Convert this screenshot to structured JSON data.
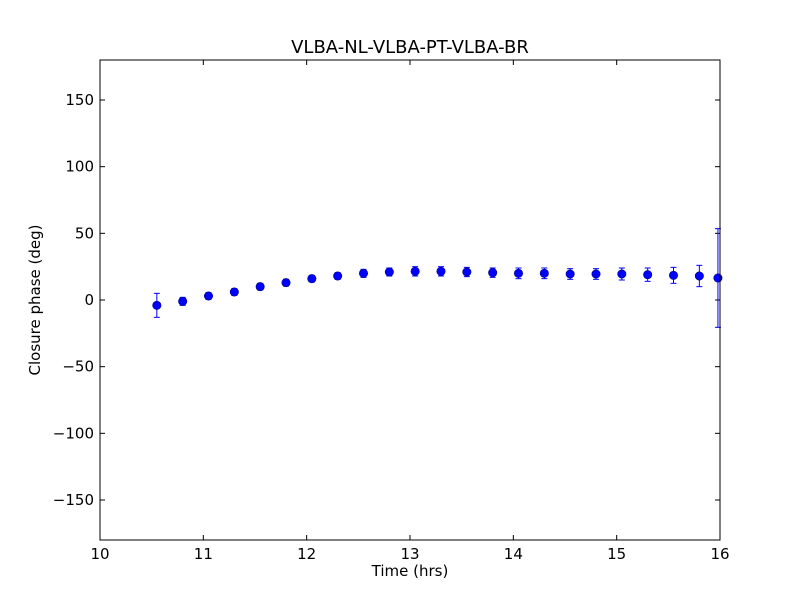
{
  "chart_data": {
    "type": "scatter",
    "title": "VLBA-NL-VLBA-PT-VLBA-BR",
    "xlabel": "Time (hrs)",
    "ylabel": "Closure phase (deg)",
    "xlim": [
      10,
      16
    ],
    "ylim": [
      -180,
      180
    ],
    "xticks": [
      10,
      11,
      12,
      13,
      14,
      15,
      16
    ],
    "yticks": [
      -150,
      -100,
      -50,
      0,
      50,
      100,
      150
    ],
    "xtick_labels": [
      "10",
      "11",
      "12",
      "13",
      "14",
      "15",
      "16"
    ],
    "ytick_labels": [
      "−150",
      "−100",
      "−50",
      "0",
      "50",
      "100",
      "150"
    ],
    "grid": false,
    "marker_color": "#0000ff",
    "errorbar_color": "#0000ff",
    "series": [
      {
        "x": [
          10.55,
          10.8,
          11.05,
          11.3,
          11.55,
          11.8,
          12.05,
          12.3,
          12.55,
          12.8,
          13.05,
          13.3,
          13.55,
          13.8,
          14.05,
          14.3,
          14.55,
          14.8,
          15.05,
          15.3,
          15.55,
          15.8,
          15.98
        ],
        "y": [
          -4,
          -1,
          3,
          6,
          10,
          13,
          16,
          18,
          20,
          21,
          21.5,
          21.5,
          21,
          20.5,
          20,
          20,
          19.5,
          19.5,
          19.5,
          19,
          18.5,
          18,
          16.5
        ],
        "yerr": [
          9,
          3,
          2.5,
          2.5,
          2.5,
          2.5,
          2.5,
          2.5,
          3,
          3,
          3.5,
          3.5,
          3.5,
          3.5,
          4,
          4,
          4,
          4,
          4.5,
          5,
          6,
          8,
          37
        ]
      }
    ]
  }
}
